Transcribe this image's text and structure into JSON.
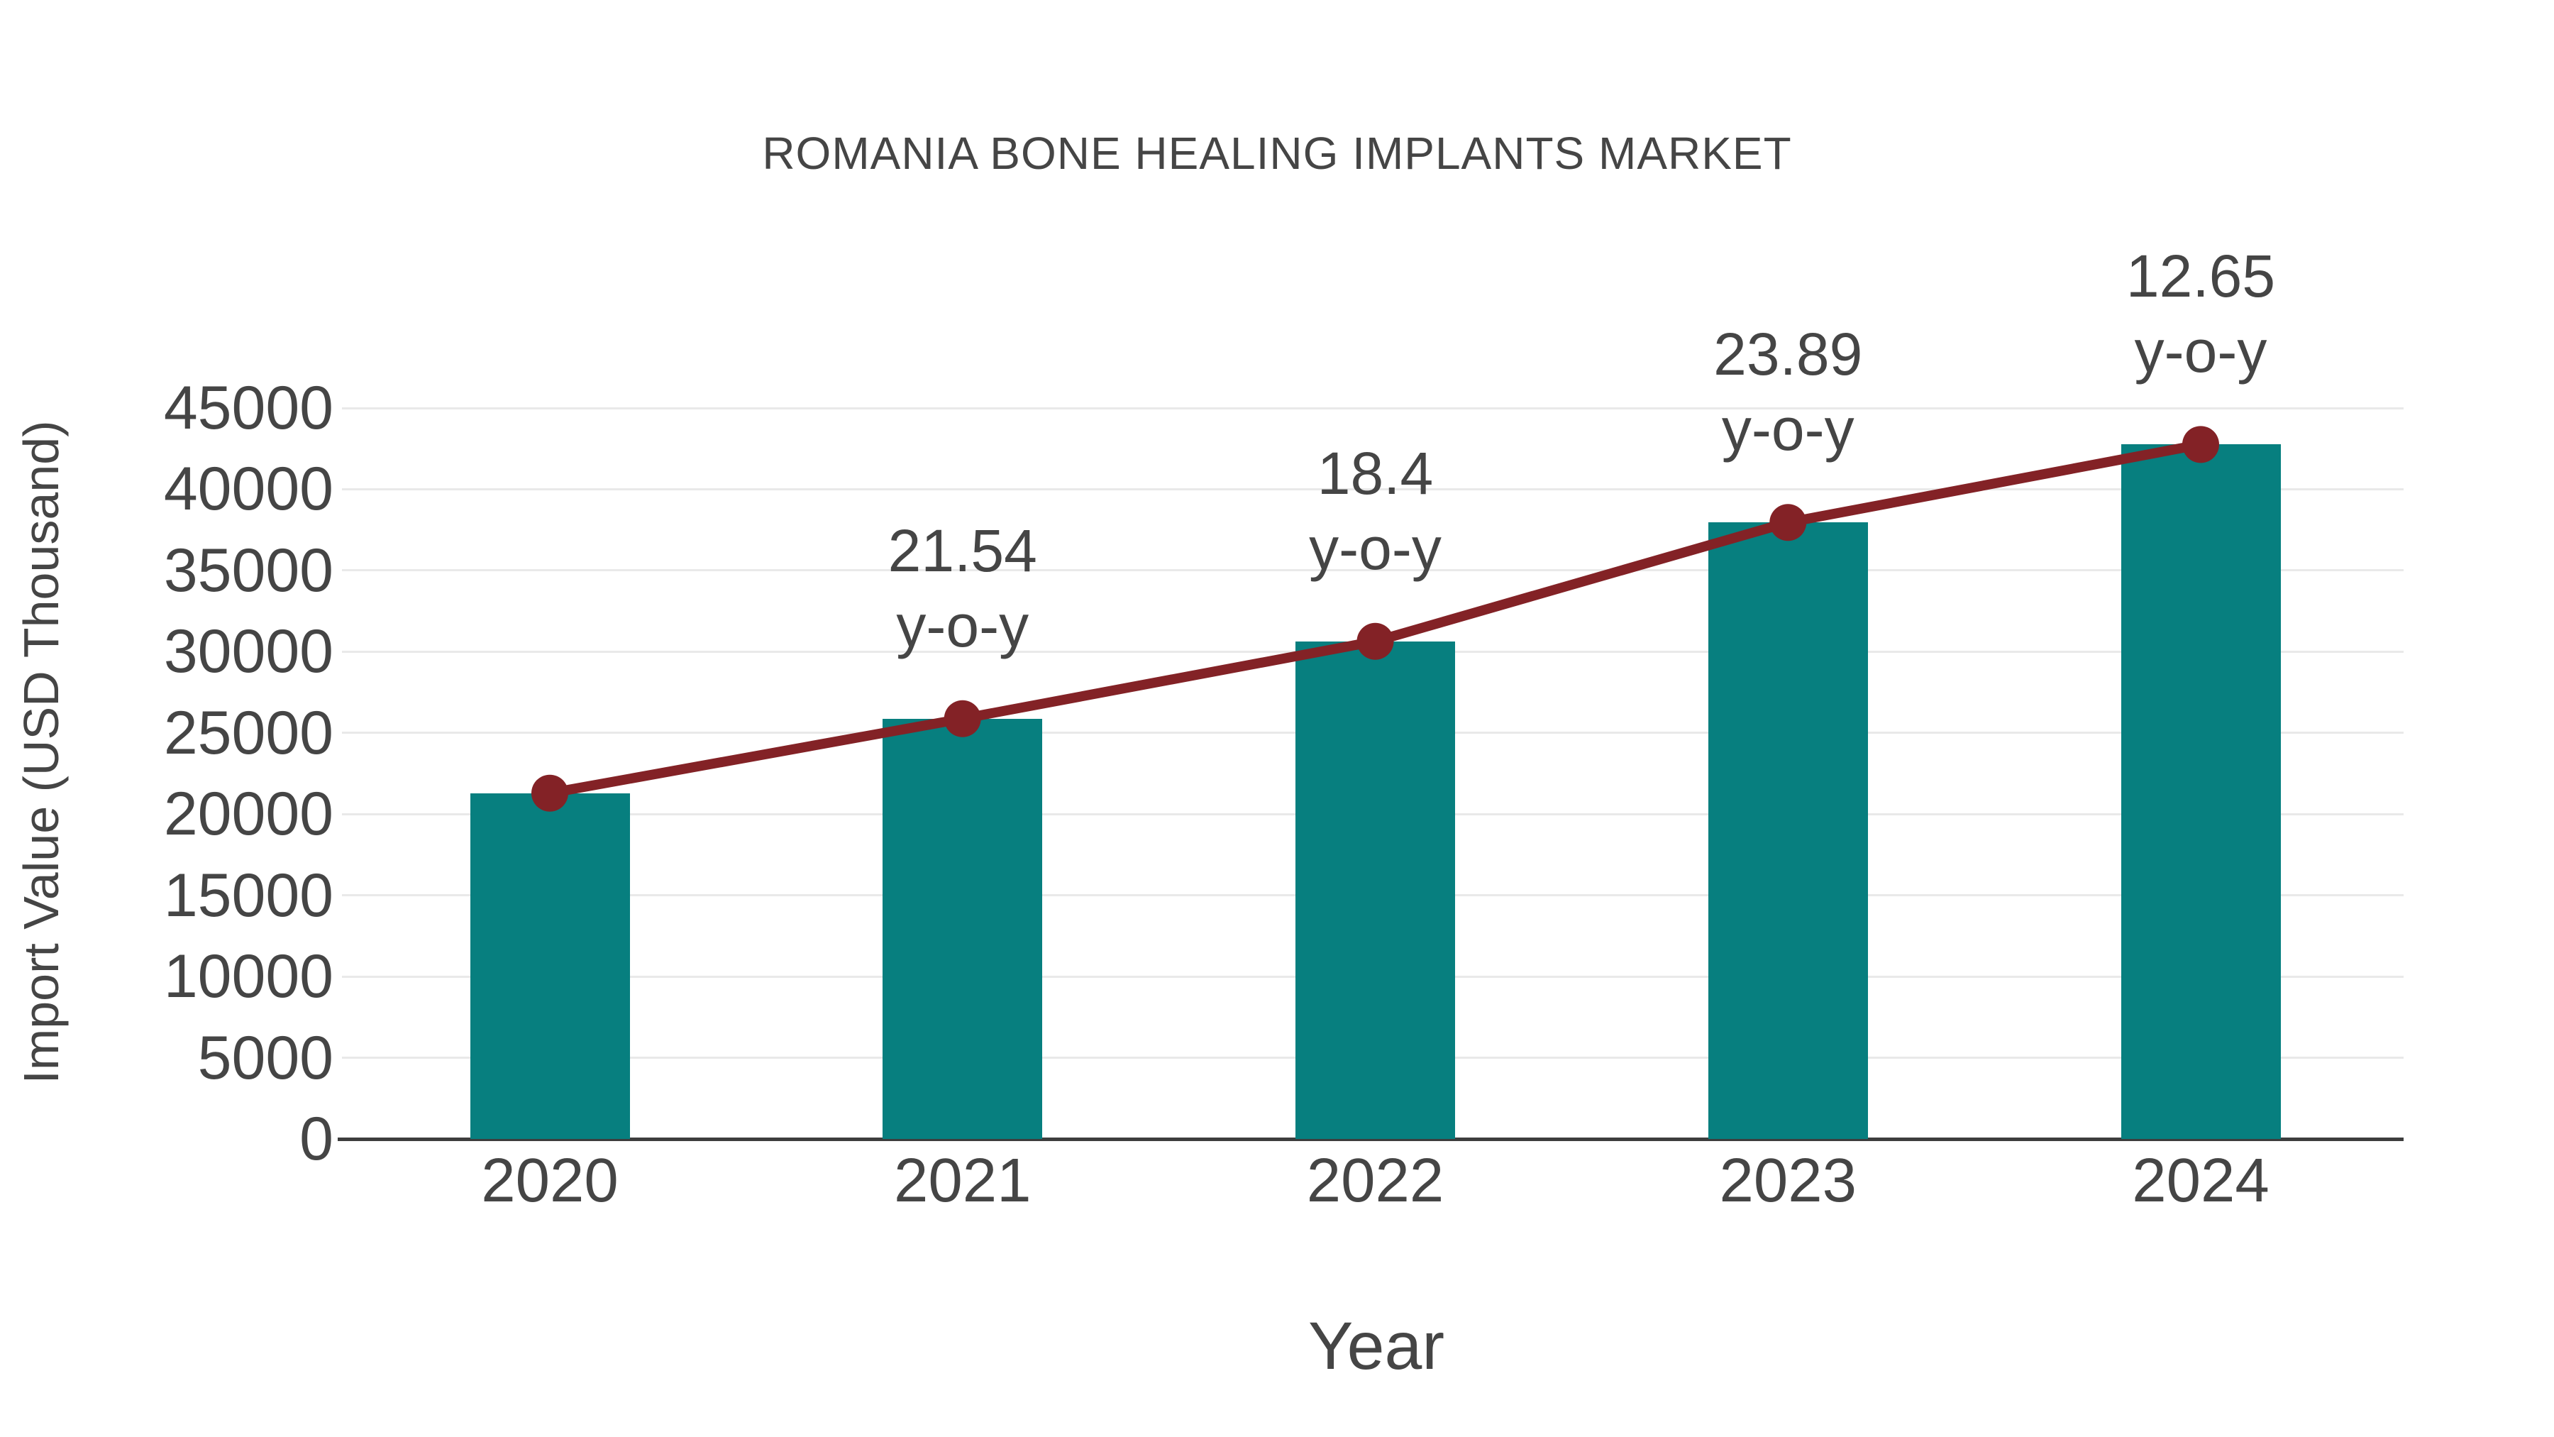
{
  "chart_data": {
    "type": "bar",
    "title": "ROMANIA BONE HEALING IMPLANTS MARKET",
    "xlabel": "Year",
    "ylabel": "Import Value (USD Thousand)",
    "categories": [
      "2020",
      "2021",
      "2022",
      "2023",
      "2024"
    ],
    "series": [
      {
        "name": "Import Value (USD Thousand)",
        "type": "bar",
        "color": "#077F7F",
        "values": [
          21290,
          25876,
          30637,
          37956,
          42758
        ]
      },
      {
        "name": "y-o-y growth",
        "type": "line",
        "color": "#832226",
        "values": [
          21290,
          25876,
          30637,
          37956,
          42758
        ],
        "growth_percent": [
          null,
          21.54,
          18.4,
          23.89,
          12.65
        ],
        "point_labels": [
          "",
          "21.54",
          "18.4",
          "23.89",
          "12.65"
        ],
        "label_suffix": "y-o-y"
      }
    ],
    "yticks": [
      0,
      5000,
      10000,
      15000,
      20000,
      25000,
      30000,
      35000,
      40000,
      45000
    ],
    "ylim": [
      0,
      45000
    ],
    "grid": "horizontal",
    "legend_position": "none",
    "colors": {
      "text": "#454545",
      "gridline": "#E9E9E9",
      "axis_line": "#3D3D3D",
      "background": "#FFFFFF"
    }
  }
}
